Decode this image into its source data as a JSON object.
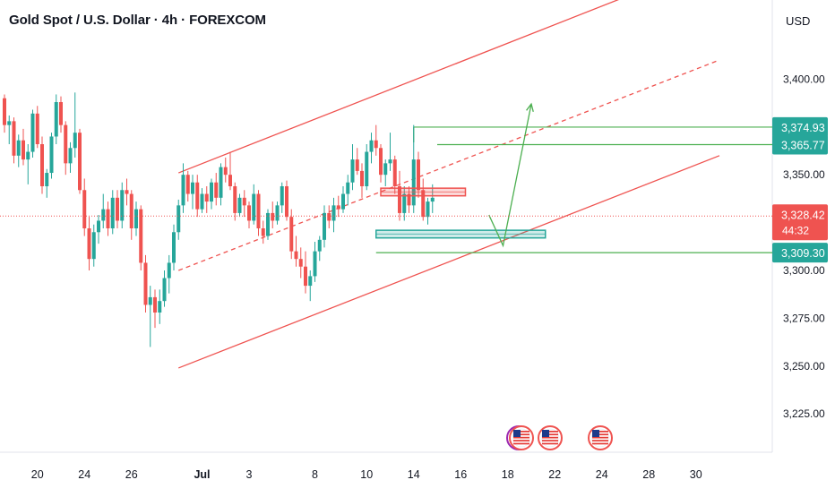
{
  "header": {
    "title": "Gold Spot / U.S. Dollar · 4h · FOREXCOM",
    "currency": "USD"
  },
  "colors": {
    "up": "#26a69a",
    "down": "#ef5350",
    "channel": "#ef5350",
    "green_line": "#4caf50",
    "zone_green": "#26a69a",
    "zone_red": "#ef5350",
    "axis_text": "#131722",
    "grid": "#f0f3fa"
  },
  "chart_data": {
    "type": "candlestick",
    "instrument": "Gold Spot / U.S. Dollar",
    "interval": "4h",
    "ylim": [
      3212,
      3432
    ],
    "y_ticks": [
      3225,
      3250,
      3275,
      3300,
      3350,
      3400
    ],
    "y_tick_labels": [
      "3,225.00",
      "3,250.00",
      "3,275.00",
      "3,300.00",
      "3,350.00",
      "3,400.00"
    ],
    "x_ticks": [
      {
        "label": "20",
        "bar": 7
      },
      {
        "label": "24",
        "bar": 17
      },
      {
        "label": "26",
        "bar": 27
      },
      {
        "label": "Jul",
        "bar": 42
      },
      {
        "label": "3",
        "bar": 52
      },
      {
        "label": "8",
        "bar": 66
      },
      {
        "label": "10",
        "bar": 77
      },
      {
        "label": "14",
        "bar": 87
      },
      {
        "label": "16",
        "bar": 97
      },
      {
        "label": "18",
        "bar": 107
      },
      {
        "label": "22",
        "bar": 117
      },
      {
        "label": "24",
        "bar": 127
      },
      {
        "label": "28",
        "bar": 137
      },
      {
        "label": "30",
        "bar": 147
      }
    ],
    "price_labels": [
      {
        "text": "3,374.93",
        "value": 3374.93,
        "kind": "green"
      },
      {
        "text": "3,365.77",
        "value": 3365.77,
        "kind": "green"
      },
      {
        "text": "3,328.42",
        "value": 3328.42,
        "kind": "current",
        "sub": "44:32"
      },
      {
        "text": "3,309.30",
        "value": 3309.3,
        "kind": "green"
      }
    ],
    "current_price": 3328.42,
    "channel": {
      "upper": [
        {
          "bar": 37,
          "price": 3351
        },
        {
          "bar": 132,
          "price": 3443
        }
      ],
      "middle": [
        {
          "bar": 37,
          "price": 3300
        },
        {
          "bar": 152,
          "price": 3410
        }
      ],
      "lower": [
        {
          "bar": 37,
          "price": 3249
        },
        {
          "bar": 152,
          "price": 3360
        }
      ]
    },
    "horizontal_levels": [
      {
        "price": 3374.93,
        "from_bar": 87
      },
      {
        "price": 3365.77,
        "from_bar": 92
      },
      {
        "price": 3309.3,
        "from_bar": 79
      }
    ],
    "zones": [
      {
        "kind": "red",
        "from_bar": 80,
        "to_bar": 98,
        "top": 3343,
        "bottom": 3339
      },
      {
        "kind": "green",
        "from_bar": 79,
        "to_bar": 115,
        "top": 3321,
        "bottom": 3317
      }
    ],
    "projection": [
      {
        "bar": 103,
        "price": 3329
      },
      {
        "bar": 106,
        "price": 3313
      },
      {
        "bar": 112,
        "price": 3387
      }
    ],
    "candles": [
      [
        3390,
        3392,
        3372,
        3376
      ],
      [
        3376,
        3381,
        3366,
        3378
      ],
      [
        3378,
        3380,
        3356,
        3360
      ],
      [
        3360,
        3371,
        3354,
        3368
      ],
      [
        3368,
        3374,
        3355,
        3358
      ],
      [
        3358,
        3366,
        3345,
        3362
      ],
      [
        3362,
        3384,
        3359,
        3382
      ],
      [
        3382,
        3386,
        3364,
        3366
      ],
      [
        3366,
        3370,
        3340,
        3344
      ],
      [
        3344,
        3353,
        3338,
        3351
      ],
      [
        3351,
        3372,
        3348,
        3370
      ],
      [
        3370,
        3392,
        3366,
        3388
      ],
      [
        3388,
        3391,
        3372,
        3376
      ],
      [
        3376,
        3378,
        3350,
        3356
      ],
      [
        3356,
        3367,
        3351,
        3364
      ],
      [
        3364,
        3393,
        3359,
        3372
      ],
      [
        3372,
        3374,
        3340,
        3342
      ],
      [
        3342,
        3348,
        3318,
        3322
      ],
      [
        3322,
        3328,
        3300,
        3306
      ],
      [
        3306,
        3324,
        3302,
        3320
      ],
      [
        3320,
        3329,
        3314,
        3326
      ],
      [
        3326,
        3340,
        3322,
        3332
      ],
      [
        3332,
        3336,
        3318,
        3322
      ],
      [
        3322,
        3342,
        3319,
        3338
      ],
      [
        3338,
        3342,
        3322,
        3326
      ],
      [
        3326,
        3346,
        3322,
        3342
      ],
      [
        3342,
        3348,
        3334,
        3340
      ],
      [
        3340,
        3342,
        3316,
        3322
      ],
      [
        3322,
        3336,
        3318,
        3332
      ],
      [
        3332,
        3334,
        3300,
        3304
      ],
      [
        3304,
        3308,
        3278,
        3282
      ],
      [
        3282,
        3292,
        3260,
        3286
      ],
      [
        3286,
        3290,
        3270,
        3278
      ],
      [
        3278,
        3290,
        3272,
        3284
      ],
      [
        3284,
        3300,
        3281,
        3296
      ],
      [
        3296,
        3308,
        3288,
        3304
      ],
      [
        3304,
        3324,
        3300,
        3320
      ],
      [
        3320,
        3337,
        3316,
        3334
      ],
      [
        3334,
        3356,
        3330,
        3350
      ],
      [
        3350,
        3352,
        3336,
        3340
      ],
      [
        3340,
        3350,
        3332,
        3346
      ],
      [
        3346,
        3350,
        3328,
        3332
      ],
      [
        3332,
        3343,
        3330,
        3340
      ],
      [
        3340,
        3344,
        3330,
        3336
      ],
      [
        3336,
        3348,
        3332,
        3346
      ],
      [
        3346,
        3351,
        3334,
        3338
      ],
      [
        3338,
        3356,
        3334,
        3354
      ],
      [
        3354,
        3359,
        3346,
        3350
      ],
      [
        3350,
        3362,
        3342,
        3344
      ],
      [
        3344,
        3346,
        3326,
        3330
      ],
      [
        3330,
        3340,
        3328,
        3338
      ],
      [
        3338,
        3342,
        3328,
        3334
      ],
      [
        3334,
        3336,
        3322,
        3326
      ],
      [
        3326,
        3345,
        3324,
        3340
      ],
      [
        3340,
        3342,
        3318,
        3322
      ],
      [
        3322,
        3326,
        3314,
        3318
      ],
      [
        3318,
        3332,
        3316,
        3330
      ],
      [
        3330,
        3336,
        3322,
        3326
      ],
      [
        3326,
        3336,
        3324,
        3334
      ],
      [
        3334,
        3346,
        3330,
        3344
      ],
      [
        3344,
        3347,
        3326,
        3328
      ],
      [
        3328,
        3332,
        3306,
        3310
      ],
      [
        3310,
        3318,
        3302,
        3306
      ],
      [
        3306,
        3312,
        3296,
        3302
      ],
      [
        3302,
        3310,
        3288,
        3292
      ],
      [
        3292,
        3300,
        3284,
        3297
      ],
      [
        3297,
        3315,
        3294,
        3310
      ],
      [
        3310,
        3318,
        3305,
        3316
      ],
      [
        3316,
        3334,
        3312,
        3330
      ],
      [
        3330,
        3334,
        3322,
        3326
      ],
      [
        3326,
        3338,
        3320,
        3334
      ],
      [
        3334,
        3339,
        3328,
        3332
      ],
      [
        3332,
        3344,
        3330,
        3340
      ],
      [
        3340,
        3350,
        3334,
        3346
      ],
      [
        3346,
        3366,
        3342,
        3358
      ],
      [
        3358,
        3364,
        3350,
        3352
      ],
      [
        3352,
        3356,
        3338,
        3344
      ],
      [
        3344,
        3366,
        3342,
        3362
      ],
      [
        3362,
        3372,
        3356,
        3368
      ],
      [
        3368,
        3376,
        3360,
        3364
      ],
      [
        3364,
        3366,
        3346,
        3350
      ],
      [
        3350,
        3358,
        3344,
        3356
      ],
      [
        3356,
        3372,
        3352,
        3358
      ],
      [
        3358,
        3360,
        3340,
        3344
      ],
      [
        3344,
        3352,
        3326,
        3330
      ],
      [
        3330,
        3344,
        3326,
        3340
      ],
      [
        3340,
        3344,
        3330,
        3334
      ],
      [
        3334,
        3376,
        3330,
        3358
      ],
      [
        3358,
        3362,
        3338,
        3342
      ],
      [
        3342,
        3348,
        3326,
        3328
      ],
      [
        3328,
        3338,
        3324,
        3336
      ],
      [
        3336,
        3345,
        3330,
        3338
      ]
    ]
  },
  "event_icons": [
    "us-flag-icon",
    "us-flag-icon",
    "us-flag-icon"
  ]
}
